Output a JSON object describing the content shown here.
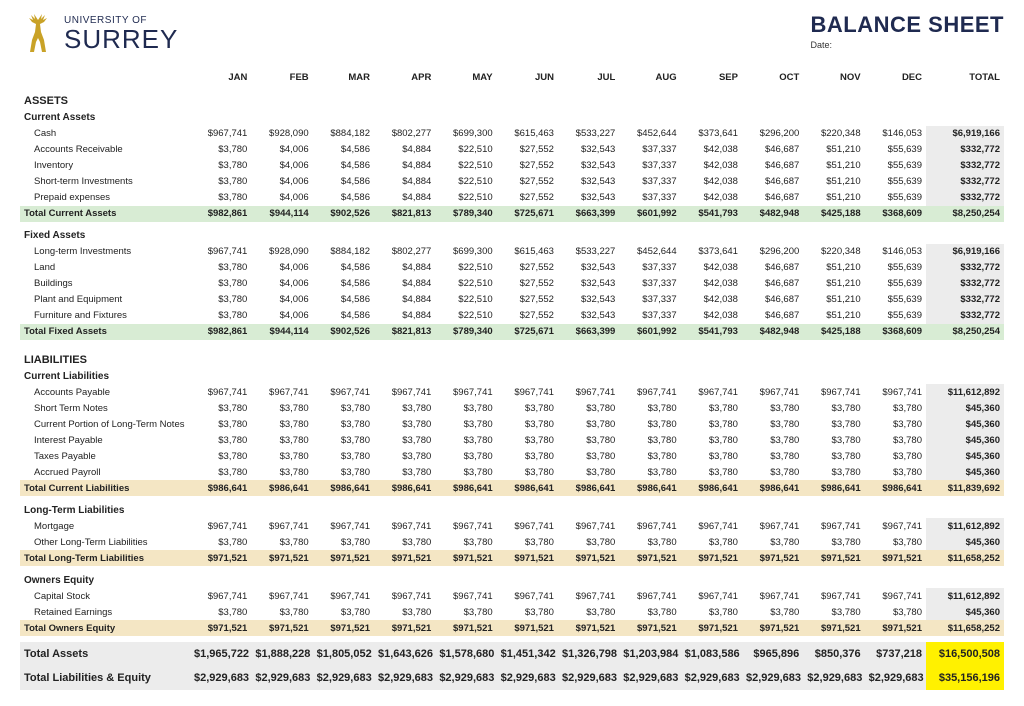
{
  "org": {
    "top": "UNIVERSITY OF",
    "name": "SURREY"
  },
  "title": "BALANCE SHEET",
  "date_label": "Date:",
  "months": [
    "JAN",
    "FEB",
    "MAR",
    "APR",
    "MAY",
    "JUN",
    "JUL",
    "AUG",
    "SEP",
    "OCT",
    "NOV",
    "DEC"
  ],
  "total_label": "TOTAL",
  "colors": {
    "heading": "#1f2a50",
    "subtotal_green": "#d8ecd4",
    "subtotal_tan": "#f4e6c4",
    "total_cell_grey": "#ececec",
    "grand_yellow": "#fff100"
  },
  "row_cash": [
    "$967,741",
    "$928,090",
    "$884,182",
    "$802,277",
    "$699,300",
    "$615,463",
    "$533,227",
    "$452,644",
    "$373,641",
    "$296,200",
    "$220,348",
    "$146,053",
    "$6,919,166"
  ],
  "row_small": [
    "$3,780",
    "$4,006",
    "$4,586",
    "$4,884",
    "$22,510",
    "$27,552",
    "$32,543",
    "$37,337",
    "$42,038",
    "$46,687",
    "$51,210",
    "$55,639",
    "$332,772"
  ],
  "row_tca": [
    "$982,861",
    "$944,114",
    "$902,526",
    "$821,813",
    "$789,340",
    "$725,671",
    "$663,399",
    "$601,992",
    "$541,793",
    "$482,948",
    "$425,188",
    "$368,609",
    "$8,250,254"
  ],
  "row_ap": [
    "$967,741",
    "$967,741",
    "$967,741",
    "$967,741",
    "$967,741",
    "$967,741",
    "$967,741",
    "$967,741",
    "$967,741",
    "$967,741",
    "$967,741",
    "$967,741",
    "$11,612,892"
  ],
  "row_3780": [
    "$3,780",
    "$3,780",
    "$3,780",
    "$3,780",
    "$3,780",
    "$3,780",
    "$3,780",
    "$3,780",
    "$3,780",
    "$3,780",
    "$3,780",
    "$3,780",
    "$45,360"
  ],
  "row_tcl": [
    "$986,641",
    "$986,641",
    "$986,641",
    "$986,641",
    "$986,641",
    "$986,641",
    "$986,641",
    "$986,641",
    "$986,641",
    "$986,641",
    "$986,641",
    "$986,641",
    "$11,839,692"
  ],
  "row_971": [
    "$971,521",
    "$971,521",
    "$971,521",
    "$971,521",
    "$971,521",
    "$971,521",
    "$971,521",
    "$971,521",
    "$971,521",
    "$971,521",
    "$971,521",
    "$971,521",
    "$11,658,252"
  ],
  "row_ta": [
    "$1,965,722",
    "$1,888,228",
    "$1,805,052",
    "$1,643,626",
    "$1,578,680",
    "$1,451,342",
    "$1,326,798",
    "$1,203,984",
    "$1,083,586",
    "$965,896",
    "$850,376",
    "$737,218",
    "$16,500,508"
  ],
  "row_tle": [
    "$2,929,683",
    "$2,929,683",
    "$2,929,683",
    "$2,929,683",
    "$2,929,683",
    "$2,929,683",
    "$2,929,683",
    "$2,929,683",
    "$2,929,683",
    "$2,929,683",
    "$2,929,683",
    "$2,929,683",
    "$35,156,196"
  ],
  "labels": {
    "assets": "ASSETS",
    "current_assets": "Current Assets",
    "cash": "Cash",
    "ar": "Accounts Receivable",
    "inventory": "Inventory",
    "sti": "Short-term Investments",
    "prepaid": "Prepaid expenses",
    "tca": "Total Current Assets",
    "fixed_assets": "Fixed Assets",
    "lti": "Long-term Investments",
    "land": "Land",
    "buildings": "Buildings",
    "pe": "Plant and Equipment",
    "ff": "Furniture and Fixtures",
    "tfa": "Total Fixed Assets",
    "liabilities": "LIABILITIES",
    "current_liabilities": "Current Liabilities",
    "ap": "Accounts Payable",
    "stn": "Short Term Notes",
    "cpltn": "Current Portion of Long-Term Notes",
    "ip": "Interest Payable",
    "tp": "Taxes Payable",
    "apay": "Accrued Payroll",
    "tcl": "Total Current Liabilities",
    "ltl": "Long-Term Liabilities",
    "mortgage": "Mortgage",
    "oltl": "Other Long-Term Liabilities",
    "tltl": "Total Long-Term Liabilities",
    "oe": "Owners Equity",
    "cs": "Capital Stock",
    "re": "Retained Earnings",
    "toe": "Total Owners Equity",
    "ta": "Total Assets",
    "tle": "Total Liabilities & Equity"
  }
}
